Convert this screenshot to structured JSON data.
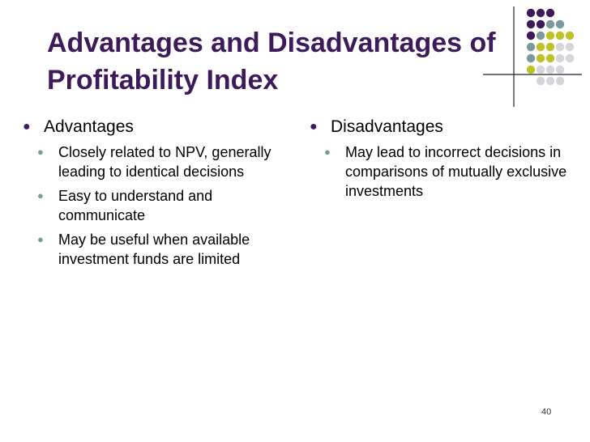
{
  "slide": {
    "title_line1": "Advantages and Disadvantages of",
    "title_line2": "Profitability Index",
    "page_number": "40",
    "colors": {
      "title": "#3d1b5b",
      "accent_teal": "#7b9a9c",
      "accent_olive": "#bdc226",
      "accent_light": "#d5d5db"
    }
  },
  "left": {
    "heading": "Advantages",
    "items": [
      "Closely related to NPV, generally leading to identical decisions",
      "Easy to understand and communicate",
      "May be useful when available investment funds are limited"
    ]
  },
  "right": {
    "heading": "Disadvantages",
    "items": [
      "May lead to incorrect decisions in comparisons of mutually exclusive investments"
    ]
  }
}
